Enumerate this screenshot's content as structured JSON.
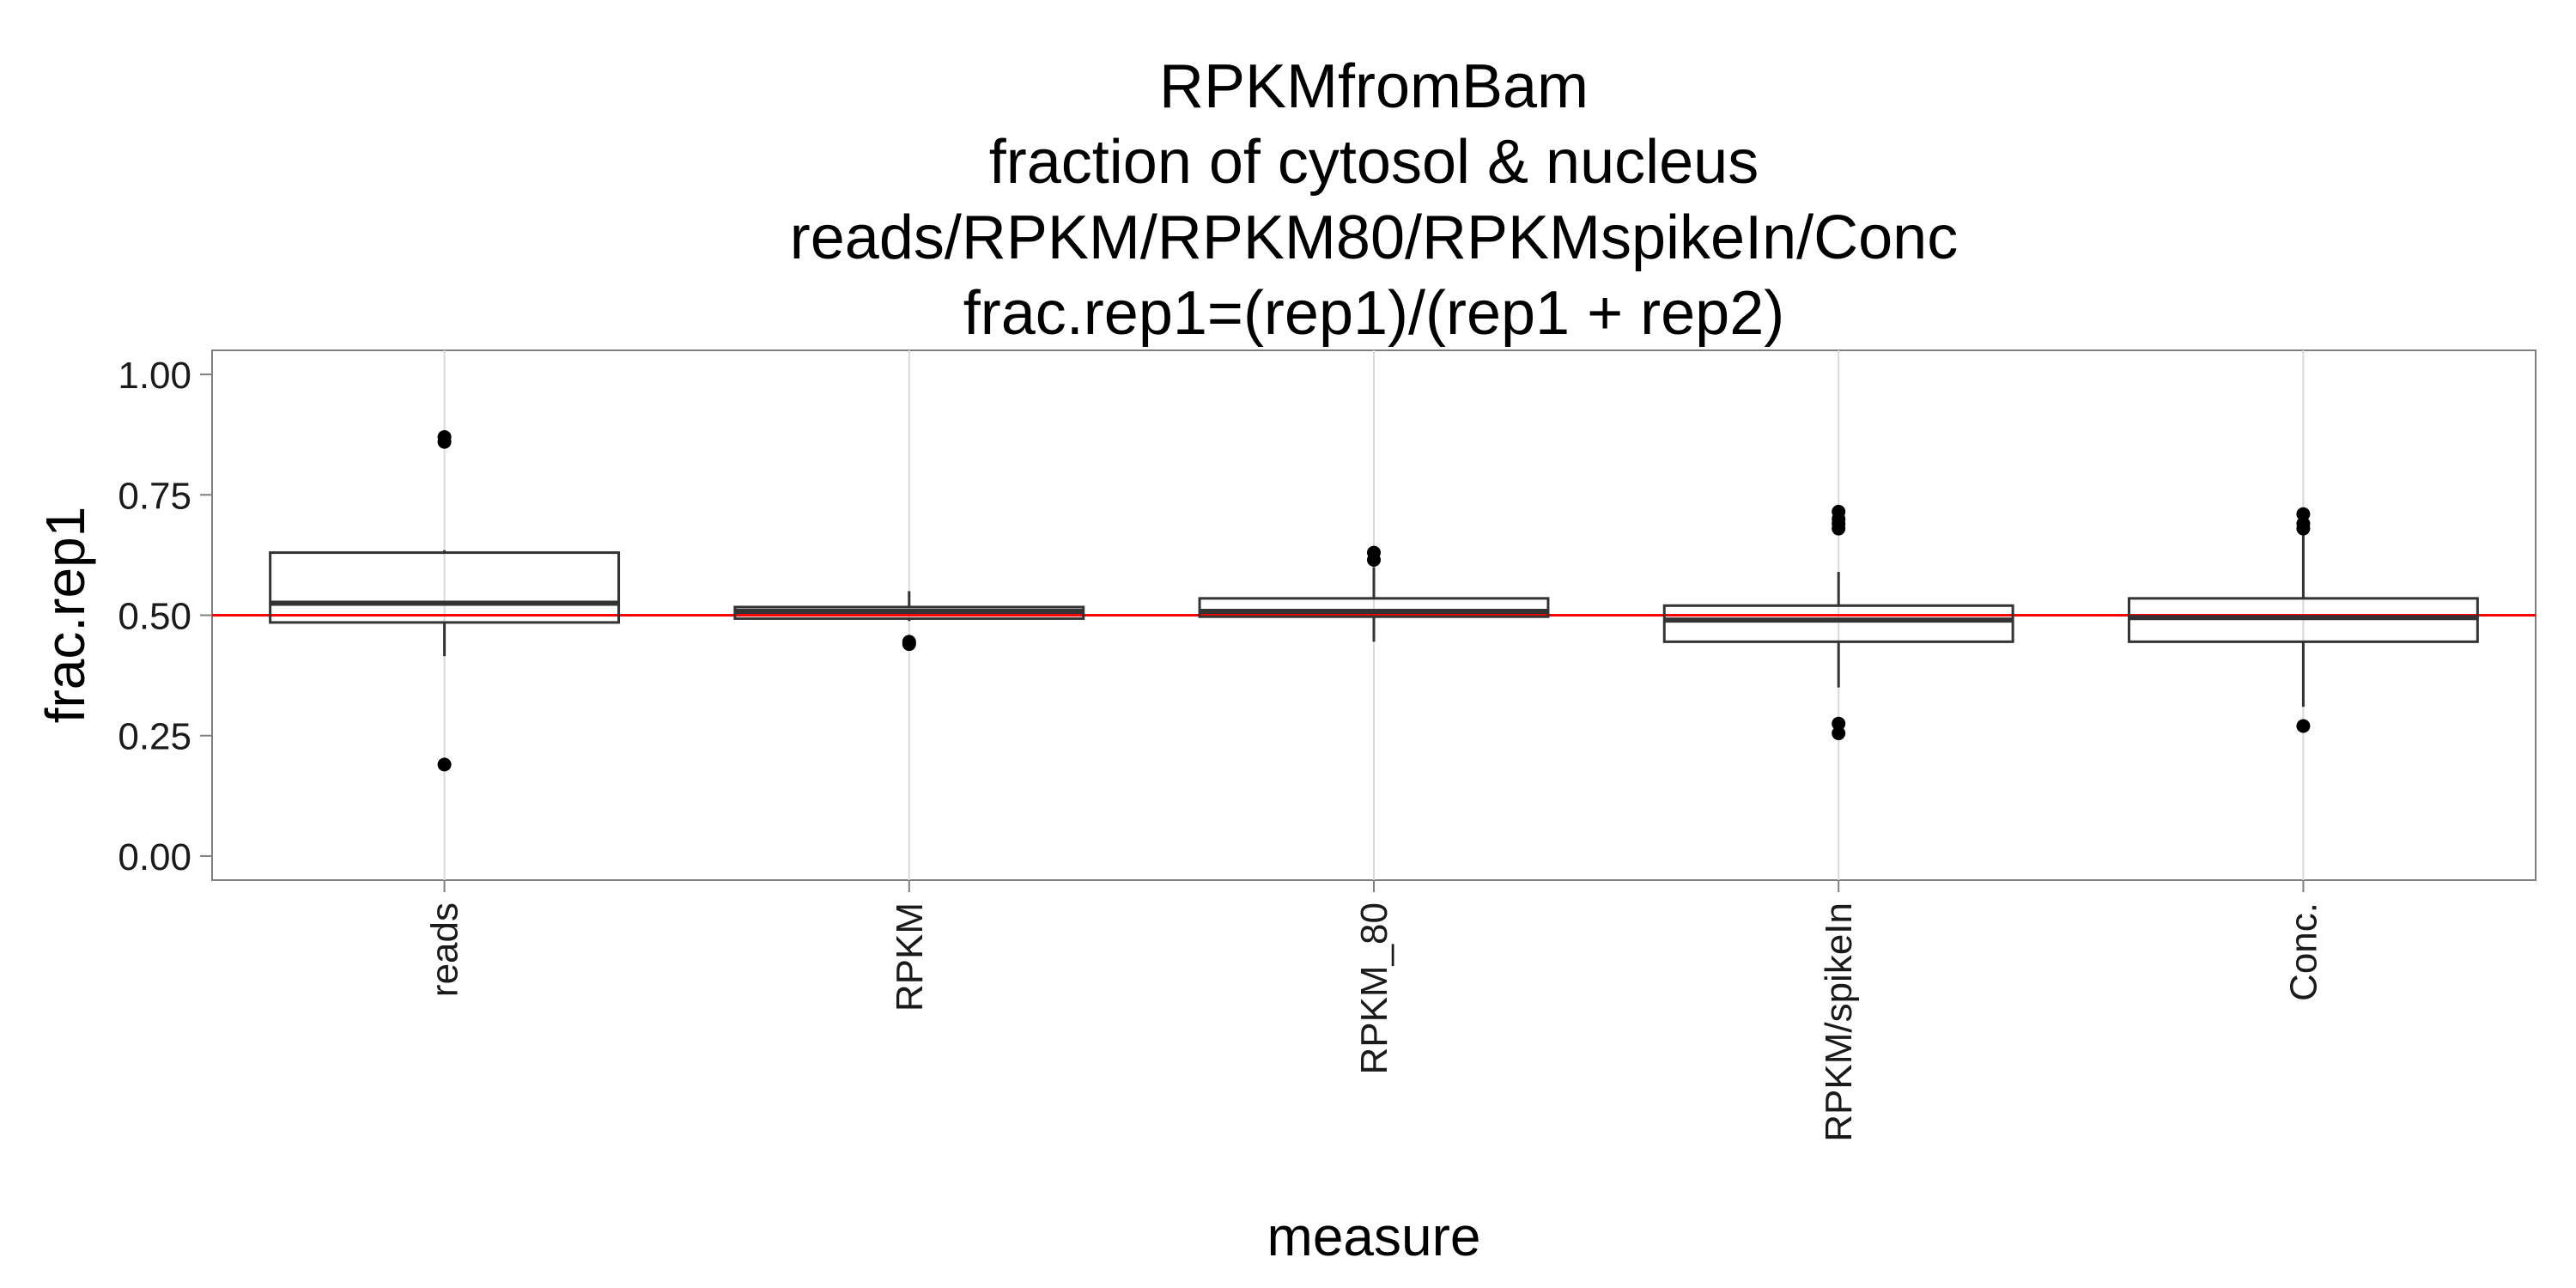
{
  "chart_data": {
    "type": "box",
    "title_lines": [
      "RPKMfromBam",
      "fraction of cytosol & nucleus",
      "reads/RPKM/RPKM80/RPKMspikeIn/Conc",
      "frac.rep1=(rep1)/(rep1 + rep2)"
    ],
    "xlabel": "measure",
    "ylabel": "frac.rep1",
    "ylim": [
      -0.05,
      1.05
    ],
    "yticks": [
      0.0,
      0.25,
      0.5,
      0.75,
      1.0
    ],
    "ytick_labels": [
      "0.00",
      "0.25",
      "0.50",
      "0.75",
      "1.00"
    ],
    "categories": [
      "reads",
      "RPKM",
      "RPKM_80",
      "RPKM/spikeIn",
      "Conc."
    ],
    "boxes": [
      {
        "q1": 0.485,
        "median": 0.525,
        "q3": 0.63,
        "whisker_low": 0.415,
        "whisker_high": 0.635,
        "outliers": [
          0.86,
          0.87,
          0.19
        ]
      },
      {
        "q1": 0.493,
        "median": 0.508,
        "q3": 0.517,
        "whisker_low": 0.488,
        "whisker_high": 0.55,
        "outliers": [
          0.44,
          0.445
        ]
      },
      {
        "q1": 0.497,
        "median": 0.508,
        "q3": 0.535,
        "whisker_low": 0.445,
        "whisker_high": 0.6,
        "outliers": [
          0.615,
          0.63
        ]
      },
      {
        "q1": 0.445,
        "median": 0.49,
        "q3": 0.52,
        "whisker_low": 0.35,
        "whisker_high": 0.59,
        "outliers": [
          0.68,
          0.69,
          0.7,
          0.715,
          0.275,
          0.255
        ]
      },
      {
        "q1": 0.445,
        "median": 0.495,
        "q3": 0.535,
        "whisker_low": 0.31,
        "whisker_high": 0.675,
        "outliers": [
          0.68,
          0.69,
          0.71,
          0.27
        ]
      }
    ],
    "reference_line": {
      "y": 0.5,
      "color": "#ff0000"
    },
    "grid": true,
    "colors": {
      "panel_border": "#7f7f7f",
      "grid": "#d9d9d9",
      "box": "#333333",
      "text": "#000000"
    }
  }
}
